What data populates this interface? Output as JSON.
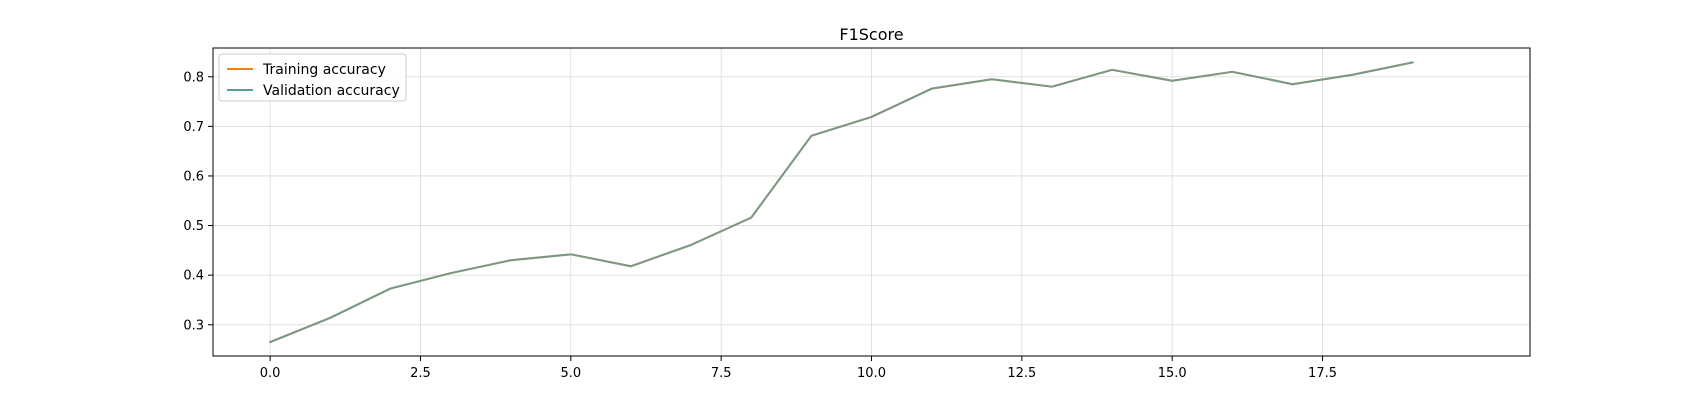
{
  "chart_data": {
    "type": "line",
    "title": "F1Score",
    "xlabel": "",
    "ylabel": "",
    "xlim": [
      -0.95,
      20.95
    ],
    "ylim": [
      0.237,
      0.858
    ],
    "xticks": [
      0.0,
      2.5,
      5.0,
      7.5,
      10.0,
      12.5,
      15.0,
      17.5
    ],
    "xtick_labels": [
      "0.0",
      "2.5",
      "5.0",
      "7.5",
      "10.0",
      "12.5",
      "15.0",
      "17.5"
    ],
    "yticks": [
      0.3,
      0.4,
      0.5,
      0.6,
      0.7,
      0.8
    ],
    "ytick_labels": [
      "0.3",
      "0.4",
      "0.5",
      "0.6",
      "0.7",
      "0.8"
    ],
    "grid": true,
    "legend_position": "top-left",
    "x": [
      0,
      1,
      2,
      3,
      4,
      5,
      6,
      7,
      8,
      9,
      10,
      11,
      12,
      13,
      14,
      15,
      16,
      17,
      18,
      19
    ],
    "series": [
      {
        "name": "Training accuracy",
        "color": "#ff7f0e",
        "values": [
          0.265,
          0.314,
          0.373,
          0.404,
          0.43,
          0.442,
          0.418,
          0.461,
          0.516,
          0.681,
          0.719,
          0.776,
          0.795,
          0.78,
          0.814,
          0.792,
          0.81,
          0.785,
          0.804,
          0.829
        ]
      },
      {
        "name": "Validation accuracy",
        "color": "#5f9ea0",
        "values": [
          0.265,
          0.314,
          0.373,
          0.404,
          0.43,
          0.442,
          0.418,
          0.461,
          0.516,
          0.681,
          0.719,
          0.776,
          0.795,
          0.78,
          0.814,
          0.792,
          0.81,
          0.785,
          0.804,
          0.829
        ]
      }
    ]
  }
}
